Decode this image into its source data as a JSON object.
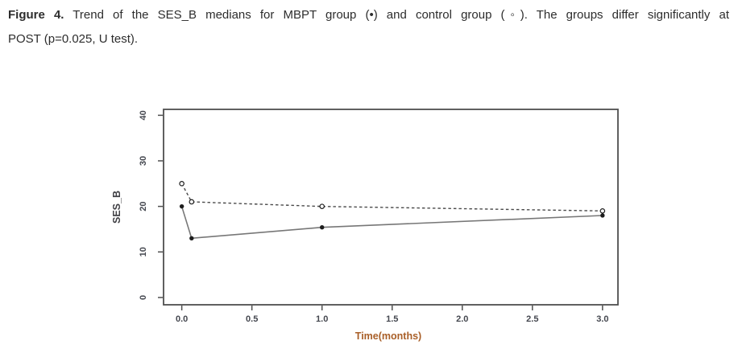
{
  "caption": {
    "figure_label": "Figure 4.",
    "line1_rest": "Trend of the SES_B medians for MBPT group (•) and control group (◦). The groups differ significantly at",
    "line2": "POST (p=0.025, U test)."
  },
  "chart_data": {
    "type": "line",
    "title": "",
    "xlabel": "Time(months)",
    "ylabel": "SES_B",
    "x_tick_values": [
      0,
      0.5,
      1,
      1.5,
      2,
      2.5,
      3
    ],
    "x_tick_labels": [
      "0.0",
      "0.5",
      "1.0",
      "1.5",
      "2.0",
      "2.5",
      "3.0"
    ],
    "y_tick_values": [
      0,
      10,
      20,
      30,
      40
    ],
    "y_tick_labels": [
      "0",
      "10",
      "20",
      "30",
      "40"
    ],
    "xlim": [
      -0.13,
      3.11
    ],
    "ylim": [
      -1.6,
      41.3
    ],
    "grid": false,
    "legend_position": "none (markers explained in caption)",
    "series": [
      {
        "name": "MBPT group",
        "marker": "filled-dot",
        "line_style": "solid",
        "line_color": "#777777",
        "marker_color": "#1d1d1d",
        "x": [
          0,
          0.07,
          1,
          3
        ],
        "y": [
          20,
          13,
          15.4,
          18
        ]
      },
      {
        "name": "control group",
        "marker": "open-circle",
        "line_style": "dashed",
        "line_color": "#4a4a4a",
        "marker_color": "#1d1d1d",
        "x": [
          0,
          0.07,
          1,
          3
        ],
        "y": [
          25,
          21,
          20,
          19
        ]
      }
    ],
    "colors": {
      "axis_box": "#4f4f4f",
      "tick": "#4f4f4f",
      "tick_label": "#44474f",
      "xlabel_color": "#a95f28",
      "ylabel_color": "#3f3f44"
    }
  }
}
